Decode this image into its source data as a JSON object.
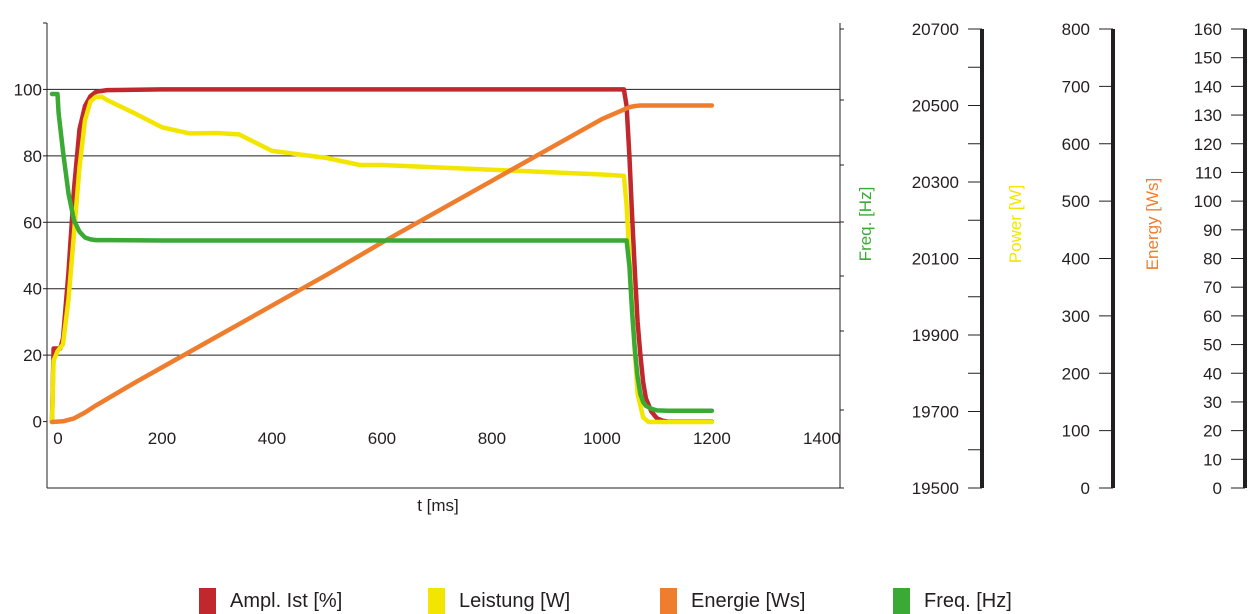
{
  "chart_data": {
    "type": "line",
    "xlabel": "t [ms]",
    "x_ticks": [
      0,
      200,
      400,
      600,
      800,
      1000,
      1200,
      1400
    ],
    "xlim": [
      0,
      1430
    ],
    "left_axis": {
      "ticks": [
        0,
        20,
        40,
        60,
        80,
        100
      ],
      "ylim": [
        -20,
        120
      ]
    },
    "axes": [
      {
        "id": "freq",
        "label": "Freq. [Hz]",
        "color": "#3aaa35",
        "ticks": [
          19500,
          19700,
          19900,
          20100,
          20300,
          20500,
          20700
        ],
        "ylim": [
          19500,
          20700
        ]
      },
      {
        "id": "power",
        "label": "Power [W]",
        "color": "#f2e600",
        "ticks": [
          0,
          100,
          200,
          300,
          400,
          500,
          600,
          700,
          800
        ],
        "ylim": [
          0,
          800
        ]
      },
      {
        "id": "energy",
        "label": "Energy [Ws]",
        "color": "#ef7d2e",
        "ticks": [
          0,
          10,
          20,
          30,
          40,
          50,
          60,
          70,
          80,
          90,
          100,
          110,
          120,
          130,
          140,
          150,
          160
        ],
        "ylim": [
          0,
          160
        ]
      }
    ],
    "series": [
      {
        "name": "Ampl. Ist [%]",
        "color": "#c0282d",
        "axis": "left",
        "x": [
          0,
          3,
          10,
          15,
          20,
          30,
          40,
          50,
          60,
          70,
          80,
          100,
          200,
          400,
          600,
          800,
          1000,
          1040,
          1045,
          1050,
          1055,
          1060,
          1065,
          1070,
          1075,
          1080,
          1090,
          1100,
          1110,
          1120,
          1200
        ],
        "y": [
          0,
          22,
          22,
          22,
          25,
          45,
          70,
          88,
          95,
          98,
          99.3,
          99.8,
          100,
          100,
          100,
          100,
          100,
          100,
          95,
          80,
          62,
          45,
          30,
          20,
          12,
          7,
          3,
          1,
          0.3,
          0,
          0
        ]
      },
      {
        "name": "Leistung [W]",
        "color": "#f2e600",
        "axis": "power",
        "x": [
          0,
          3,
          10,
          20,
          30,
          40,
          50,
          60,
          70,
          80,
          90,
          100,
          150,
          200,
          250,
          300,
          340,
          400,
          500,
          560,
          600,
          700,
          800,
          900,
          1000,
          1040,
          1045,
          1055,
          1065,
          1075,
          1085,
          1100,
          1200
        ],
        "y": [
          0,
          130,
          150,
          165,
          260,
          400,
          540,
          640,
          680,
          690,
          690,
          683,
          655,
          625,
          612,
          613,
          610,
          575,
          560,
          545,
          545,
          540,
          535,
          530,
          525,
          522,
          460,
          240,
          60,
          10,
          0,
          0,
          0
        ]
      },
      {
        "name": "Energie [Ws]",
        "color": "#ef7d2e",
        "axis": "energy",
        "x": [
          0,
          20,
          40,
          60,
          80,
          100,
          150,
          200,
          300,
          400,
          500,
          600,
          700,
          800,
          900,
          1000,
          1040,
          1050,
          1060,
          1070,
          1200
        ],
        "y": [
          0,
          0.3,
          1.5,
          4,
          7,
          9.7,
          16.5,
          23,
          36,
          49,
          62,
          75.5,
          88.5,
          101.5,
          114.5,
          127.5,
          131.5,
          132.5,
          133,
          133.2,
          133.2
        ]
      },
      {
        "name": "Freq. [Hz]",
        "color": "#3aaa35",
        "axis": "freq",
        "x": [
          0,
          10,
          12,
          20,
          30,
          40,
          50,
          60,
          70,
          80,
          100,
          200,
          400,
          600,
          800,
          1000,
          1045,
          1050,
          1055,
          1060,
          1065,
          1070,
          1075,
          1080,
          1090,
          1100,
          1120,
          1140,
          1200
        ],
        "y": [
          20530,
          20530,
          20480,
          20380,
          20270,
          20200,
          20170,
          20155,
          20150,
          20148,
          20148,
          20147,
          20147,
          20147,
          20147,
          20147,
          20147,
          20080,
          19960,
          19860,
          19790,
          19745,
          19725,
          19715,
          19707,
          19703,
          19702,
          19702,
          19702
        ]
      }
    ]
  },
  "legend": [
    {
      "label": "Ampl. Ist [%]",
      "color": "#c0282d"
    },
    {
      "label": "Leistung [W]",
      "color": "#f2e600"
    },
    {
      "label": "Energie [Ws]",
      "color": "#ef7d2e"
    },
    {
      "label": "Freq. [Hz]",
      "color": "#3aaa35"
    }
  ]
}
